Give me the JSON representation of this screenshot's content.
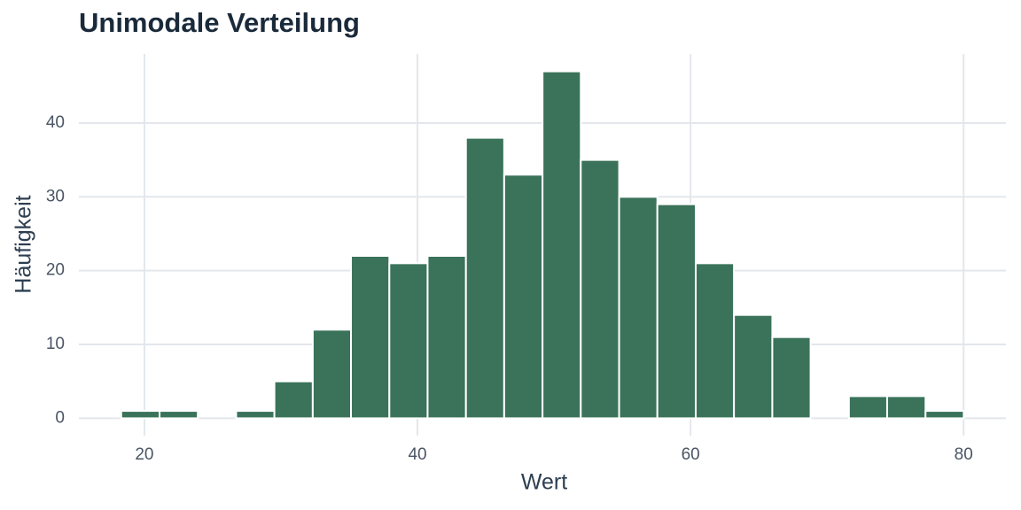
{
  "chart_data": {
    "type": "histogram",
    "title": "Unimodale Verteilung",
    "x_label": "Wert",
    "y_label": "Häufigkeit",
    "bins": [
      18.3,
      21.11,
      23.91,
      26.72,
      29.52,
      32.33,
      35.13,
      37.94,
      40.74,
      43.55,
      46.35,
      49.16,
      51.96,
      54.77,
      57.57,
      60.38,
      63.18,
      65.99,
      68.79,
      71.6,
      74.4,
      77.21,
      80.01
    ],
    "values": [
      1,
      1,
      0,
      1,
      5,
      12,
      22,
      21,
      22,
      38,
      33,
      47,
      35,
      30,
      29,
      21,
      14,
      11,
      0,
      3,
      3,
      1
    ],
    "color": "#3a735a",
    "xlim": [
      15.2,
      83.1
    ],
    "xticks": [
      20,
      40,
      60,
      80
    ],
    "ylim": [
      -2.35,
      49.35
    ],
    "yticks": [
      0,
      10,
      20,
      30,
      40
    ],
    "grid": true
  }
}
